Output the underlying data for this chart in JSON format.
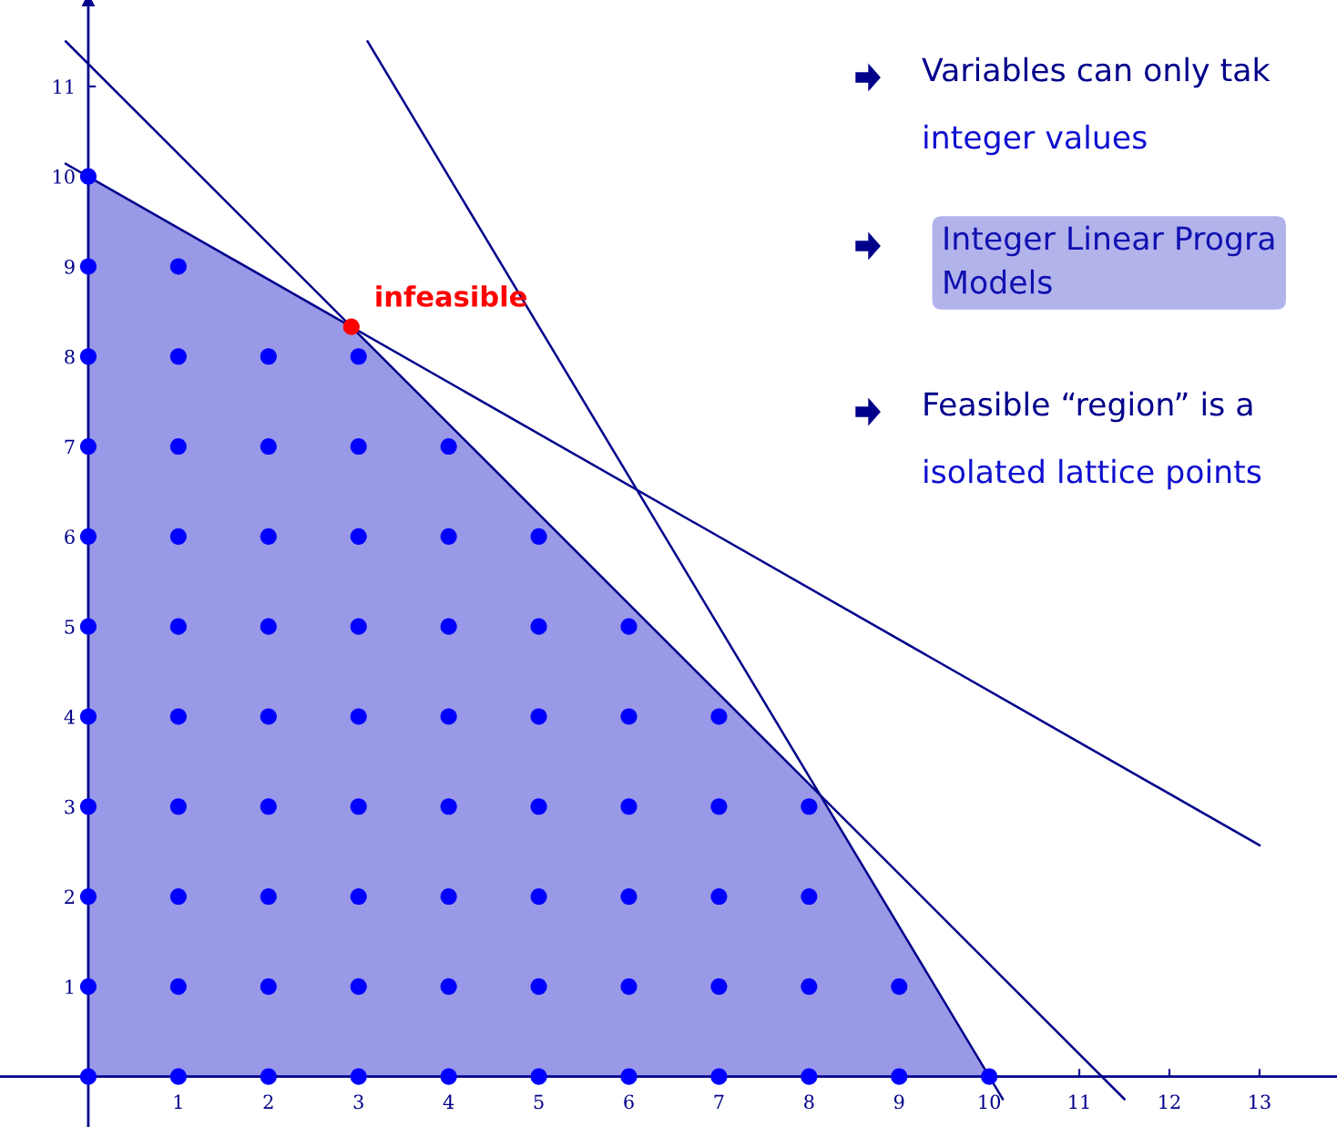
{
  "chart_data": {
    "type": "scatter",
    "xlim": [
      -0.98,
      13.86
    ],
    "ylim": [
      -0.56,
      11.96
    ],
    "xticks": [
      1,
      2,
      3,
      4,
      5,
      6,
      7,
      8,
      9,
      10,
      11,
      12,
      13
    ],
    "yticks": [
      1,
      2,
      3,
      4,
      5,
      6,
      7,
      8,
      9,
      10,
      11
    ],
    "grid": false,
    "series": [
      {
        "type": "area",
        "color": "#9999e8",
        "x": [
          0,
          2.92,
          8.12,
          10
        ],
        "values": [
          10,
          8.33,
          3.12,
          0
        ]
      },
      {
        "type": "line",
        "color": "#00008b",
        "x": [
          -0.25,
          13
        ],
        "values": [
          10.14,
          2.57
        ]
      },
      {
        "type": "line",
        "color": "#00008b",
        "x": [
          -0.25,
          11.5
        ],
        "values": [
          11.5,
          -0.25
        ]
      },
      {
        "type": "line",
        "color": "#00008b",
        "x": [
          3.1,
          10.15
        ],
        "values": [
          11.5,
          -0.25
        ]
      },
      {
        "marker": "circle",
        "color": "#0000ff",
        "x": [
          0,
          1,
          2,
          3,
          4,
          5,
          6,
          7,
          8,
          9,
          10,
          0,
          1,
          2,
          3,
          4,
          5,
          6,
          7,
          8,
          9,
          0,
          1,
          2,
          3,
          4,
          5,
          6,
          7,
          8,
          0,
          1,
          2,
          3,
          4,
          5,
          6,
          7,
          8,
          0,
          1,
          2,
          3,
          4,
          5,
          6,
          7,
          0,
          1,
          2,
          3,
          4,
          5,
          6,
          0,
          1,
          2,
          3,
          4,
          5,
          0,
          1,
          2,
          3,
          4,
          0,
          1,
          2,
          3,
          0,
          1,
          0
        ],
        "values": [
          0,
          0,
          0,
          0,
          0,
          0,
          0,
          0,
          0,
          0,
          0,
          1,
          1,
          1,
          1,
          1,
          1,
          1,
          1,
          1,
          1,
          2,
          2,
          2,
          2,
          2,
          2,
          2,
          2,
          2,
          3,
          3,
          3,
          3,
          3,
          3,
          3,
          3,
          3,
          4,
          4,
          4,
          4,
          4,
          4,
          4,
          4,
          5,
          5,
          5,
          5,
          5,
          5,
          5,
          6,
          6,
          6,
          6,
          6,
          6,
          7,
          7,
          7,
          7,
          7,
          8,
          8,
          8,
          8,
          9,
          9,
          10
        ]
      },
      {
        "marker": "circle",
        "color": "#ff0000",
        "x": [
          2.92
        ],
        "values": [
          8.33
        ]
      }
    ],
    "annotations": [
      {
        "text": "infeasible",
        "x": 2.92,
        "y": 8.33
      },
      "Variables can only tak\ninteger values",
      "Integer Linear Progra\nModels",
      "Feasible “region” is a\nisolated lattice points"
    ]
  }
}
